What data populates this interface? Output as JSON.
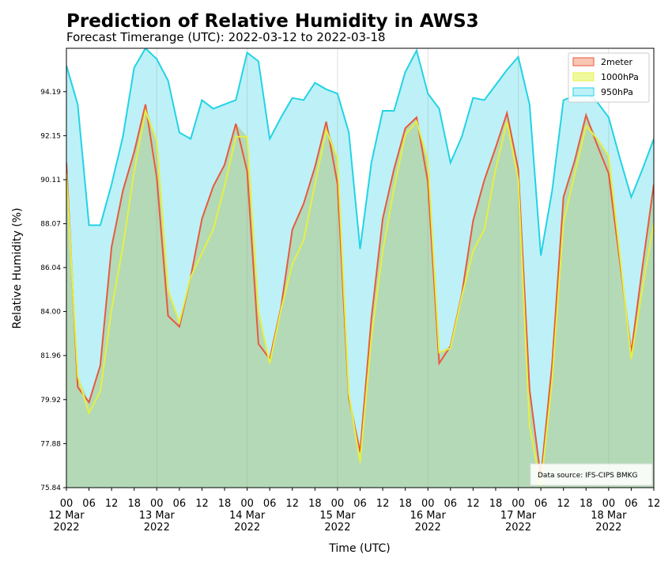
{
  "chart_data": {
    "type": "area",
    "title": "Prediction of Relative Humidity in AWS3",
    "subtitle": "Forecast Timerange (UTC): 2022-03-12 to 2022-03-18",
    "xlabel": "Time (UTC)",
    "ylabel": "Relative Humidity (%)",
    "ylim": [
      75.84,
      96.2
    ],
    "xlim": [
      "2022-03-12 00:00",
      "2022-03-18 12:00"
    ],
    "yticks": [
      "75.84",
      "77.88",
      "79.92",
      "81.96",
      "84.00",
      "86.04",
      "88.07",
      "90.11",
      "92.15",
      "94.19"
    ],
    "xticks": [
      {
        "t": "2022-03-12 00:00",
        "label": "00\n12 Mar\n2022"
      },
      {
        "t": "2022-03-12 06:00",
        "label": "06"
      },
      {
        "t": "2022-03-12 12:00",
        "label": "12"
      },
      {
        "t": "2022-03-12 18:00",
        "label": "18"
      },
      {
        "t": "2022-03-13 00:00",
        "label": "00\n13 Mar\n2022"
      },
      {
        "t": "2022-03-13 06:00",
        "label": "06"
      },
      {
        "t": "2022-03-13 12:00",
        "label": "12"
      },
      {
        "t": "2022-03-13 18:00",
        "label": "18"
      },
      {
        "t": "2022-03-14 00:00",
        "label": "00\n14 Mar\n2022"
      },
      {
        "t": "2022-03-14 06:00",
        "label": "06"
      },
      {
        "t": "2022-03-14 12:00",
        "label": "12"
      },
      {
        "t": "2022-03-14 18:00",
        "label": "18"
      },
      {
        "t": "2022-03-15 00:00",
        "label": "00\n15 Mar\n2022"
      },
      {
        "t": "2022-03-15 06:00",
        "label": "06"
      },
      {
        "t": "2022-03-15 12:00",
        "label": "12"
      },
      {
        "t": "2022-03-15 18:00",
        "label": "18"
      },
      {
        "t": "2022-03-16 00:00",
        "label": "00\n16 Mar\n2022"
      },
      {
        "t": "2022-03-16 06:00",
        "label": "06"
      },
      {
        "t": "2022-03-16 12:00",
        "label": "12"
      },
      {
        "t": "2022-03-16 18:00",
        "label": "18"
      },
      {
        "t": "2022-03-17 00:00",
        "label": "00\n17 Mar\n2022"
      },
      {
        "t": "2022-03-17 06:00",
        "label": "06"
      },
      {
        "t": "2022-03-17 12:00",
        "label": "12"
      },
      {
        "t": "2022-03-17 18:00",
        "label": "18"
      },
      {
        "t": "2022-03-18 00:00",
        "label": "00\n18 Mar\n2022"
      },
      {
        "t": "2022-03-18 06:00",
        "label": "06"
      },
      {
        "t": "2022-03-18 12:00",
        "label": "12"
      }
    ],
    "legend_position": "top-right",
    "grid": "vertical lines at each day boundary",
    "annotation": "Data source: IFS-CIPS BMKG",
    "x": [
      "2022-03-12 00:00",
      "2022-03-12 03:00",
      "2022-03-12 06:00",
      "2022-03-12 09:00",
      "2022-03-12 12:00",
      "2022-03-12 15:00",
      "2022-03-12 18:00",
      "2022-03-12 21:00",
      "2022-03-13 00:00",
      "2022-03-13 03:00",
      "2022-03-13 06:00",
      "2022-03-13 09:00",
      "2022-03-13 12:00",
      "2022-03-13 15:00",
      "2022-03-13 18:00",
      "2022-03-13 21:00",
      "2022-03-14 00:00",
      "2022-03-14 03:00",
      "2022-03-14 06:00",
      "2022-03-14 09:00",
      "2022-03-14 12:00",
      "2022-03-14 15:00",
      "2022-03-14 18:00",
      "2022-03-14 21:00",
      "2022-03-15 00:00",
      "2022-03-15 03:00",
      "2022-03-15 06:00",
      "2022-03-15 09:00",
      "2022-03-15 12:00",
      "2022-03-15 15:00",
      "2022-03-15 18:00",
      "2022-03-15 21:00",
      "2022-03-16 00:00",
      "2022-03-16 03:00",
      "2022-03-16 06:00",
      "2022-03-16 09:00",
      "2022-03-16 12:00",
      "2022-03-16 15:00",
      "2022-03-16 18:00",
      "2022-03-16 21:00",
      "2022-03-17 00:00",
      "2022-03-17 03:00",
      "2022-03-17 06:00",
      "2022-03-17 09:00",
      "2022-03-17 12:00",
      "2022-03-17 15:00",
      "2022-03-17 18:00",
      "2022-03-17 21:00",
      "2022-03-18 00:00",
      "2022-03-18 03:00",
      "2022-03-18 06:00",
      "2022-03-18 09:00",
      "2022-03-18 12:00"
    ],
    "series": [
      {
        "name": "950hPa",
        "line_color": "#22d3e6",
        "fill_color": "#bdf1f7",
        "values": [
          95.4,
          93.6,
          88.0,
          88.0,
          89.9,
          92.1,
          95.3,
          96.2,
          95.7,
          94.7,
          92.3,
          92.0,
          93.8,
          93.4,
          93.6,
          93.8,
          96.0,
          95.6,
          92.0,
          93.0,
          93.9,
          93.8,
          94.6,
          94.3,
          94.1,
          92.3,
          86.9,
          90.9,
          93.3,
          93.3,
          95.1,
          96.1,
          94.1,
          93.4,
          90.9,
          92.1,
          93.9,
          93.8,
          94.5,
          95.2,
          95.8,
          93.6,
          86.6,
          89.6,
          93.8,
          94.0,
          94.2,
          93.7,
          93.0,
          91.1,
          89.3,
          90.6,
          92.0
        ]
      },
      {
        "name": "2meter",
        "line_color": "#e8593f",
        "fill_color": "#f8c6b3",
        "values": [
          90.9,
          80.5,
          79.8,
          81.5,
          87.0,
          89.6,
          91.4,
          93.6,
          90.2,
          83.8,
          83.3,
          85.6,
          88.3,
          89.8,
          90.8,
          92.7,
          90.5,
          82.5,
          81.8,
          84.2,
          87.8,
          89.0,
          90.7,
          92.8,
          89.9,
          80.0,
          77.5,
          83.7,
          88.3,
          90.6,
          92.5,
          93.0,
          90.0,
          81.6,
          82.4,
          84.8,
          88.2,
          90.1,
          91.6,
          93.2,
          90.6,
          80.4,
          76.3,
          81.6,
          89.3,
          91.0,
          93.1,
          91.7,
          90.4,
          86.3,
          82.1,
          86.1,
          89.9
        ]
      },
      {
        "name": "1000hPa",
        "line_color": "#e6f041",
        "fill_color": "#effa9e",
        "values": [
          90.4,
          81.0,
          79.3,
          80.3,
          84.1,
          87.0,
          90.5,
          93.3,
          91.9,
          85.0,
          83.5,
          85.6,
          86.7,
          87.8,
          89.8,
          92.1,
          92.1,
          84.0,
          81.6,
          84.1,
          86.2,
          87.3,
          89.9,
          92.4,
          91.1,
          80.2,
          77.0,
          82.8,
          86.8,
          89.7,
          92.2,
          92.8,
          91.0,
          82.1,
          82.3,
          84.7,
          86.8,
          87.8,
          90.6,
          92.8,
          90.1,
          78.7,
          75.9,
          80.8,
          88.1,
          90.4,
          92.6,
          92.0,
          91.2,
          86.6,
          81.8,
          85.1,
          88.1
        ]
      }
    ],
    "overlap_fill_color": "#b4d9b7"
  }
}
